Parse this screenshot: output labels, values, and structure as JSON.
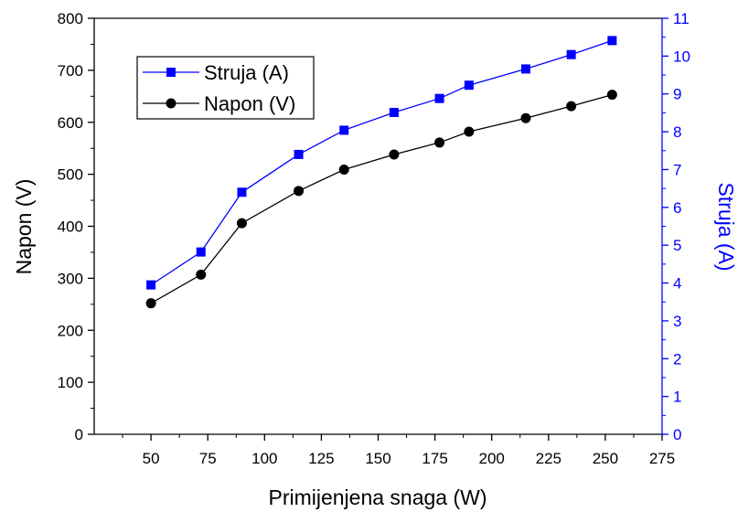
{
  "chart_data": {
    "type": "line",
    "xlabel": "Primijenjena snaga (W)",
    "ylabel_left": "Napon (V)",
    "ylabel_right": "Struja (A)",
    "xlim": [
      25,
      275
    ],
    "ylim_left": [
      0,
      800
    ],
    "ylim_right": [
      0,
      11
    ],
    "x_ticks": [
      50,
      75,
      100,
      125,
      150,
      175,
      200,
      225,
      250,
      275
    ],
    "y_left_ticks": [
      0,
      100,
      200,
      300,
      400,
      500,
      600,
      700,
      800
    ],
    "y_right_ticks": [
      0,
      1,
      2,
      3,
      4,
      5,
      6,
      7,
      8,
      9,
      10,
      11
    ],
    "grid": false,
    "legend_position": "top-left",
    "colors": {
      "struja": "#0000ff",
      "napon": "#000000",
      "axis": "#000000",
      "right_axis": "#0000ff"
    },
    "series": [
      {
        "name": "Struja (A)",
        "axis": "right",
        "marker": "square",
        "color": "#0000ff",
        "x": [
          50,
          72,
          90,
          115,
          135,
          157,
          177,
          190,
          215,
          235,
          253
        ],
        "values": [
          3.95,
          4.82,
          6.4,
          7.4,
          8.04,
          8.51,
          8.88,
          9.23,
          9.66,
          10.04,
          10.41
        ]
      },
      {
        "name": "Napon (V)",
        "axis": "left",
        "marker": "circle",
        "color": "#000000",
        "x": [
          50,
          72,
          90,
          115,
          135,
          157,
          177,
          190,
          215,
          235,
          253
        ],
        "values": [
          252,
          307,
          406,
          468,
          509,
          538,
          561,
          582,
          608,
          631,
          653
        ]
      }
    ]
  }
}
